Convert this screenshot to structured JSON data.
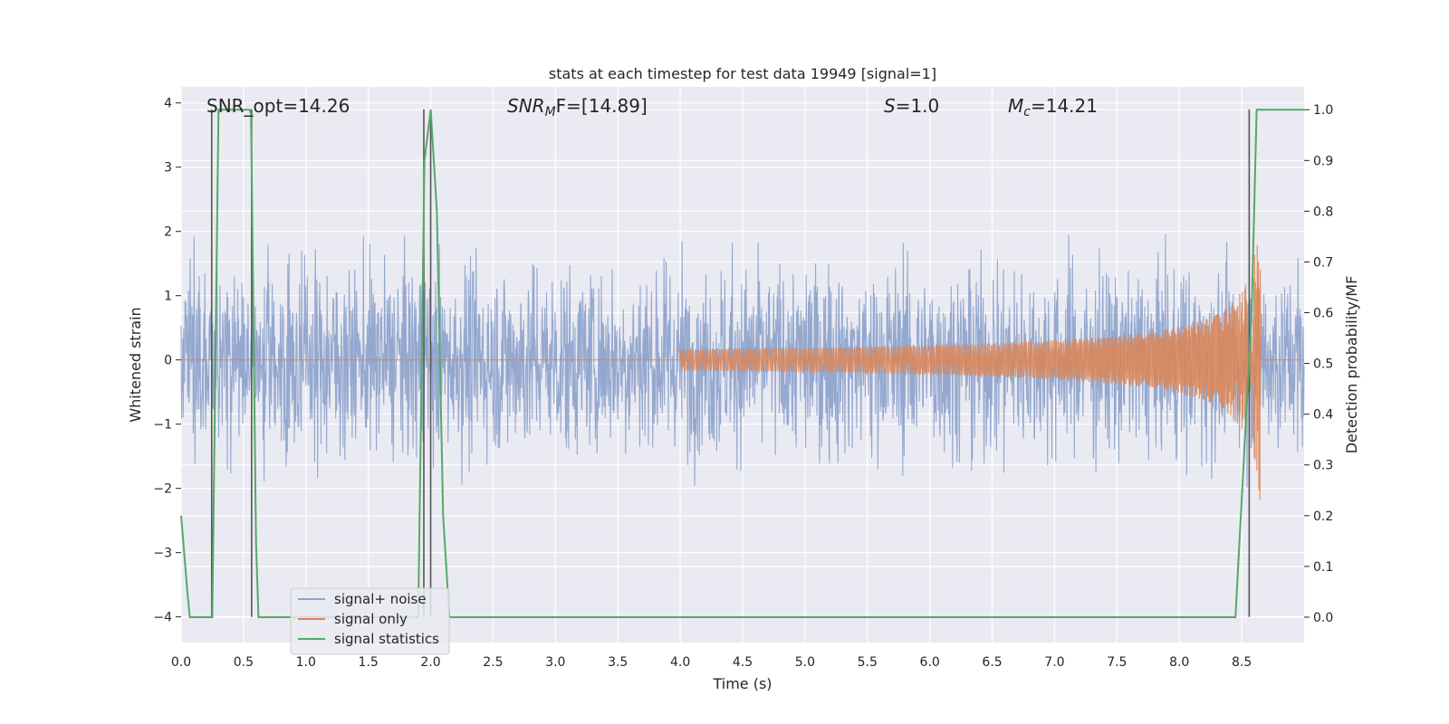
{
  "chart_data": {
    "type": "line",
    "title": "stats at each timestep for test data 19949 [signal=1]",
    "xlabel": "Time (s)",
    "ylabel": "Whitened strain",
    "y2label": "Detection probability/MF",
    "xlim": [
      0.0,
      9.0
    ],
    "ylim": [
      -4.4,
      4.25
    ],
    "y2lim": [
      -0.05,
      1.045
    ],
    "x_ticks": [
      0.0,
      0.5,
      1.0,
      1.5,
      2.0,
      2.5,
      3.0,
      3.5,
      4.0,
      4.5,
      5.0,
      5.5,
      6.0,
      6.5,
      7.0,
      7.5,
      8.0,
      8.5
    ],
    "x_tick_labels": [
      "0.0",
      "0.5",
      "1.0",
      "1.5",
      "2.0",
      "2.5",
      "3.0",
      "3.5",
      "4.0",
      "4.5",
      "5.0",
      "5.5",
      "6.0",
      "6.5",
      "7.0",
      "7.5",
      "8.0",
      "8.5"
    ],
    "y_ticks": [
      -4,
      -3,
      -2,
      -1,
      0,
      1,
      2,
      3,
      4
    ],
    "y_tick_labels": [
      "−4",
      "−3",
      "−2",
      "−1",
      "0",
      "1",
      "2",
      "3",
      "4"
    ],
    "y2_ticks": [
      0.0,
      0.1,
      0.2,
      0.3,
      0.4,
      0.5,
      0.6,
      0.7,
      0.8,
      0.9,
      1.0
    ],
    "y2_tick_labels": [
      "0.0",
      "0.1",
      "0.2",
      "0.3",
      "0.4",
      "0.5",
      "0.6",
      "0.7",
      "0.8",
      "0.9",
      "1.0"
    ],
    "grid": true,
    "legend_position": "lower-left",
    "annotations": {
      "snr_opt": "SNR_opt=14.26",
      "snr_mf_main": "SNR",
      "snr_mf_sub": "M",
      "snr_mf_rest": "F=[14.89]",
      "s_main": "S",
      "s_rest": "=1.0",
      "mc_main": "M",
      "mc_sub": "c",
      "mc_rest": "=14.21"
    },
    "series": [
      {
        "name": "signal+ noise",
        "color": "#8fa4cc",
        "description_values": "noise band roughly between -1.6 and 1.6, spikes to about ±3.5"
      },
      {
        "name": "signal only",
        "color": "#dd8452",
        "chirp_start": 4.0,
        "chirp_peak_time": 8.65,
        "chirp_peak_amplitude": 2.3
      },
      {
        "name": "signal statistics",
        "color": "#55a868",
        "axis": "right",
        "points": [
          [
            0.0,
            0.2
          ],
          [
            0.05,
            0.05
          ],
          [
            0.07,
            0.0
          ],
          [
            0.25,
            0.0
          ],
          [
            0.3,
            1.0
          ],
          [
            0.55,
            1.0
          ],
          [
            0.56,
            0.99
          ],
          [
            0.6,
            0.15
          ],
          [
            0.62,
            0.0
          ],
          [
            1.9,
            0.0
          ],
          [
            1.95,
            0.9
          ],
          [
            2.0,
            1.0
          ],
          [
            2.05,
            0.8
          ],
          [
            2.1,
            0.2
          ],
          [
            2.15,
            0.0
          ],
          [
            8.45,
            0.0
          ],
          [
            8.58,
            0.6
          ],
          [
            8.62,
            1.0
          ],
          [
            9.0,
            1.0
          ]
        ]
      }
    ],
    "vertical_markers": [
      0.245,
      0.565,
      1.945,
      2.0,
      8.56
    ]
  },
  "legend": {
    "items": [
      {
        "label": "signal+ noise",
        "color": "#8fa4cc"
      },
      {
        "label": "signal only",
        "color": "#dd8452"
      },
      {
        "label": "signal statistics",
        "color": "#55a868"
      }
    ]
  }
}
